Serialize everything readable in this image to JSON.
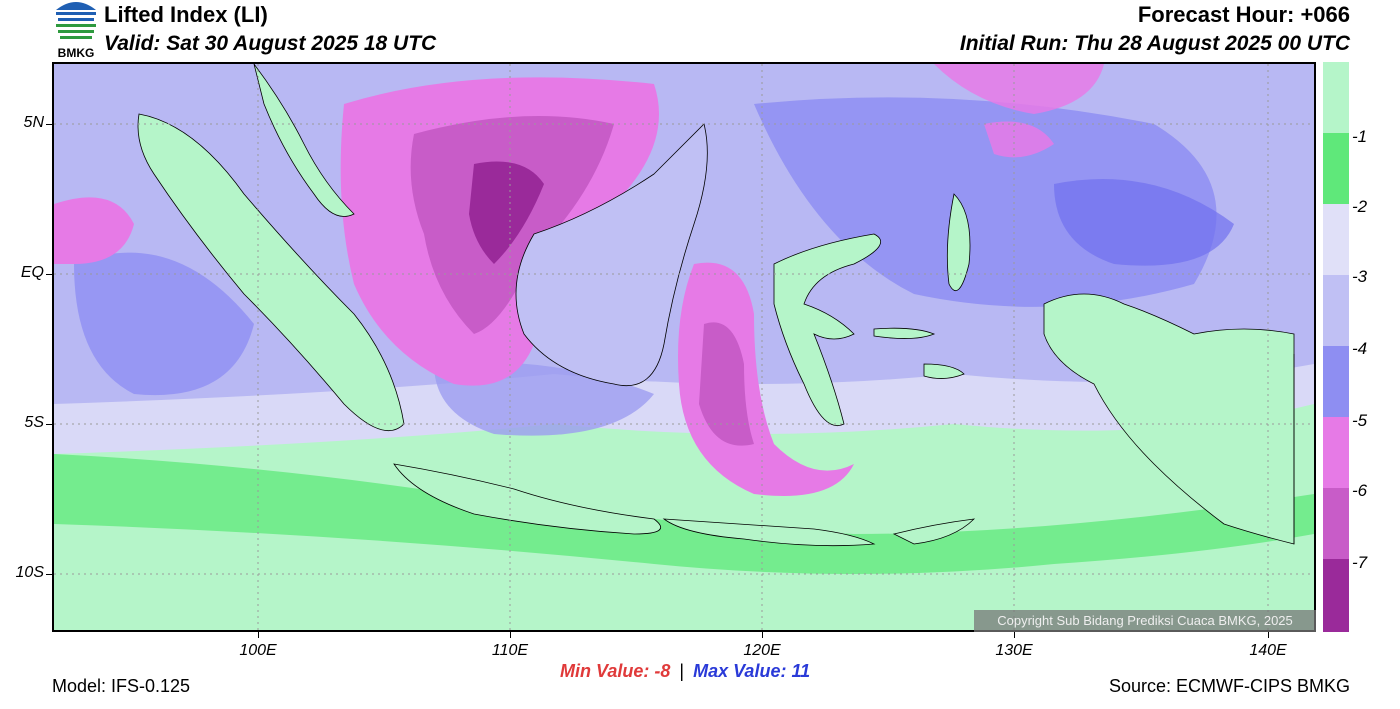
{
  "header": {
    "title": "Lifted Index (LI)",
    "valid": "Valid: Sat 30 August 2025 18 UTC",
    "forecast_hour": "Forecast Hour: +066",
    "initial_run": "Initial Run: Thu 28 August 2025 00 UTC",
    "logo_text": "BMKG"
  },
  "axes": {
    "lat_labels": [
      "5N",
      "EQ",
      "5S",
      "10S"
    ],
    "lon_labels": [
      "100E",
      "110E",
      "120E",
      "130E",
      "140E"
    ]
  },
  "colorbar": {
    "labels": [
      "-1",
      "-2",
      "-3",
      "-4",
      "-5",
      "-6",
      "-7"
    ],
    "colors": [
      "#b5f5c9",
      "#5fe87a",
      "#e0e0f8",
      "#c0c0f4",
      "#8e8ef2",
      "#7070ee",
      "#e67ae6",
      "#c85cc8",
      "#9a2a9a"
    ]
  },
  "footer": {
    "model": "Model: IFS-0.125",
    "min_label": "Min Value:  -8",
    "separator": "|",
    "max_label": "Max Value:  11",
    "source": "Source: ECMWF-CIPS BMKG",
    "copyright": "Copyright Sub Bidang Prediksi Cuaca BMKG, 2025"
  }
}
